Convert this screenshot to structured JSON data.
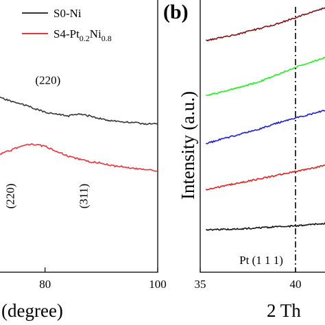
{
  "chart_data": [
    {
      "type": "line",
      "panel_label": "",
      "xlabel": "(degree)",
      "ylabel": "",
      "xlim": [
        72,
        100
      ],
      "x_ticks": [
        "80",
        "100"
      ],
      "grid": false,
      "legend_position": "top-right",
      "series": [
        {
          "name": "S0-Ni",
          "color": "#333333",
          "points": [
            [
              72,
              117.9
            ],
            [
              74,
              117.5
            ],
            [
              76,
              117.2
            ],
            [
              78,
              116.8
            ],
            [
              80,
              116.4
            ],
            [
              82,
              116.2
            ],
            [
              84,
              116.0
            ],
            [
              86,
              116.2
            ],
            [
              88,
              116.0
            ],
            [
              90,
              115.7
            ],
            [
              92,
              115.5
            ],
            [
              94,
              115.4
            ],
            [
              96,
              115.3
            ],
            [
              98,
              115.2
            ],
            [
              100,
              115.2
            ]
          ]
        },
        {
          "name": "S4-Pt0.2Ni0.8",
          "color": "#e8333a",
          "points": [
            [
              72,
              112.1
            ],
            [
              74,
              112.5
            ],
            [
              76,
              113.0
            ],
            [
              78,
              113.1
            ],
            [
              80,
              112.9
            ],
            [
              82,
              112.4
            ],
            [
              84,
              111.9
            ],
            [
              86,
              111.6
            ],
            [
              88,
              111.3
            ],
            [
              90,
              111.2
            ],
            [
              92,
              110.9
            ],
            [
              94,
              110.8
            ],
            [
              96,
              110.6
            ],
            [
              98,
              110.5
            ],
            [
              100,
              110.4
            ]
          ]
        }
      ],
      "legend": [
        {
          "prefix": "S0-Ni",
          "sub1": "",
          "mid": "",
          "sub2": ""
        },
        {
          "prefix": "S4-Pt",
          "sub1": "0.2",
          "mid": "Ni",
          "sub2": "0.8"
        }
      ],
      "annotations": [
        {
          "text": "(220)",
          "x": 80.5,
          "y": 119.3
        },
        {
          "text": "(220)",
          "x": 74.5,
          "y": 107.8
        },
        {
          "text": "(311)",
          "x": 87.5,
          "y": 107.8
        }
      ]
    },
    {
      "type": "line",
      "panel_label": "(b)",
      "xlabel": "2 Th",
      "ylabel": "Intensity (a.u.)",
      "xlim": [
        35,
        45
      ],
      "x_ticks": [
        "35",
        "40"
      ],
      "grid": false,
      "series": [
        {
          "color": "#7a1010",
          "points": [
            [
              35.3,
              9.1
            ],
            [
              36,
              9.2
            ],
            [
              37,
              9.35
            ],
            [
              38,
              9.55
            ],
            [
              39,
              9.75
            ],
            [
              40,
              10.0
            ],
            [
              41,
              10.25
            ],
            [
              42,
              10.5
            ]
          ]
        },
        {
          "color": "#22ee22",
          "points": [
            [
              35.3,
              6.95
            ],
            [
              36,
              7.05
            ],
            [
              37,
              7.25
            ],
            [
              38,
              7.45
            ],
            [
              39,
              7.75
            ],
            [
              40,
              8.05
            ],
            [
              41,
              8.3
            ],
            [
              42,
              8.55
            ]
          ]
        },
        {
          "color": "#1a1ad8",
          "points": [
            [
              35.3,
              5.05
            ],
            [
              36,
              5.2
            ],
            [
              37,
              5.4
            ],
            [
              38,
              5.6
            ],
            [
              39,
              5.85
            ],
            [
              40,
              6.05
            ],
            [
              41,
              6.25
            ],
            [
              42,
              6.45
            ]
          ]
        },
        {
          "color": "#dd2222",
          "points": [
            [
              35.3,
              3.25
            ],
            [
              36,
              3.35
            ],
            [
              37,
              3.5
            ],
            [
              38,
              3.65
            ],
            [
              39,
              3.8
            ],
            [
              40,
              3.95
            ],
            [
              41,
              4.1
            ],
            [
              42,
              4.3
            ]
          ]
        },
        {
          "color": "#111111",
          "points": [
            [
              35.3,
              1.65
            ],
            [
              36,
              1.68
            ],
            [
              37,
              1.7
            ],
            [
              38,
              1.74
            ],
            [
              39,
              1.78
            ],
            [
              40,
              1.82
            ],
            [
              41,
              1.88
            ],
            [
              42,
              1.95
            ]
          ]
        }
      ],
      "reference_line": {
        "x": 40,
        "label": "Pt (1 1 1)"
      }
    }
  ]
}
